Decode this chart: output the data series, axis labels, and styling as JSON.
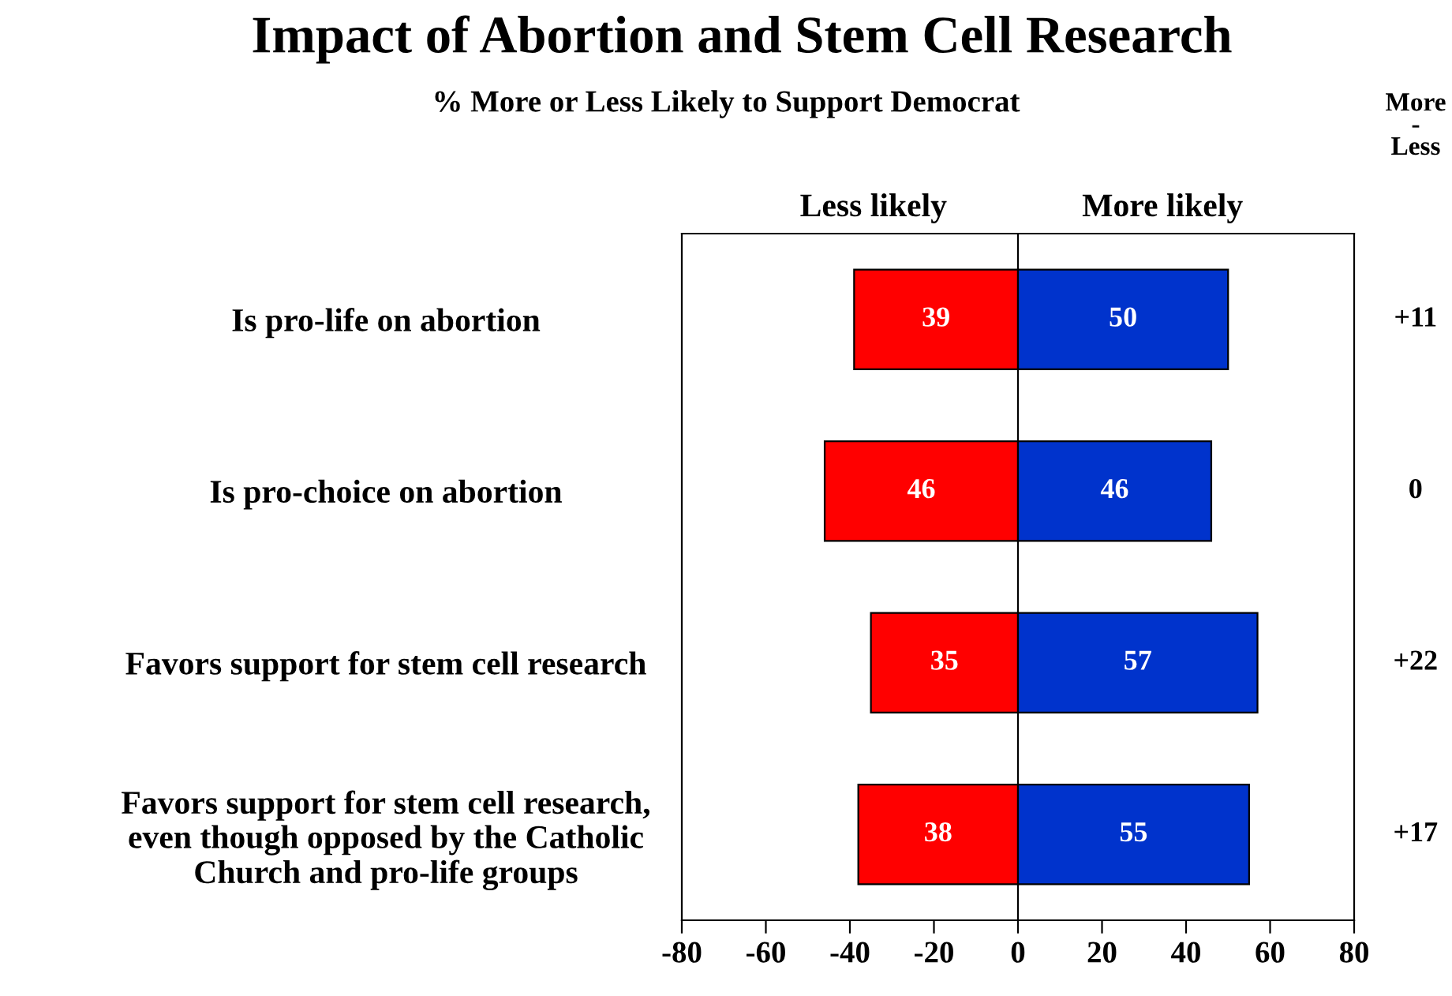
{
  "chart_data": {
    "type": "bar",
    "orientation": "horizontal",
    "title": "Impact of Abortion and Stem Cell Research",
    "subtitle": "% More or Less Likely to Support Democrat",
    "categories": [
      "Is pro-life on abortion",
      "Is pro-choice on abortion",
      "Favors support for stem cell research",
      "Favors support for stem cell research,\neven though opposed by the Catholic\nChurch and pro-life groups"
    ],
    "series": [
      {
        "name": "Less likely",
        "color": "#ff0000",
        "values": [
          39,
          46,
          35,
          38
        ],
        "base": [
          -39,
          -46,
          -35,
          -38
        ]
      },
      {
        "name": "More likely",
        "color": "#0033cc",
        "values": [
          50,
          46,
          57,
          55
        ]
      }
    ],
    "data_labels": true,
    "annotations": [
      "More\n-\nLess",
      "+11",
      "0",
      "+22",
      "+17"
    ],
    "ref_lines": [
      {
        "axis": "x",
        "value": 0,
        "color": "#000000"
      }
    ],
    "xlim": [
      -80,
      80
    ],
    "xticks": [
      -80,
      -60,
      -40,
      -20,
      0,
      20,
      40,
      60,
      80
    ],
    "legend": false
  }
}
